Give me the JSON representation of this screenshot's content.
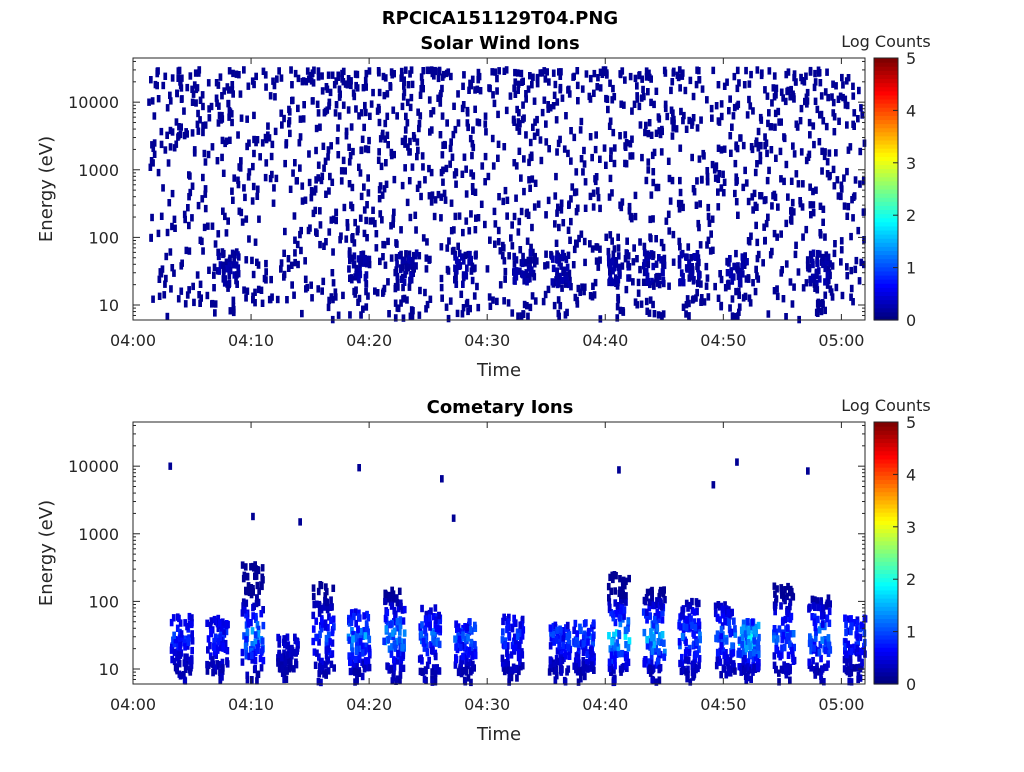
{
  "figure": {
    "title": "RPCICA151129T04.PNG"
  },
  "chart_data": [
    {
      "type": "heatmap",
      "title": "Solar Wind Ions",
      "xlabel": "Time",
      "ylabel": "Energy (eV)",
      "yscale": "log",
      "xlim": [
        "04:00",
        "05:02"
      ],
      "ylim": [
        6,
        45000
      ],
      "x_ticks": [
        "04:00",
        "04:10",
        "04:20",
        "04:30",
        "04:40",
        "04:50",
        "05:00"
      ],
      "y_ticks": [
        "10",
        "100",
        "1000",
        "10000"
      ],
      "colorbar": {
        "label": "Log Counts",
        "range": [
          0,
          5
        ],
        "ticks": [
          "0",
          "1",
          "2",
          "3",
          "4",
          "5"
        ],
        "colormap": "jet"
      },
      "description_values": {
        "scattered_counts_energy_range_eV": [
          10,
          30000
        ],
        "typical_log_counts_scatter": 0.1,
        "dense_bands_energy_eV": [
          20,
          60
        ],
        "dense_band_times": [
          "04:08",
          "04:19",
          "04:23",
          "04:28",
          "04:33",
          "04:36",
          "04:41",
          "04:44",
          "04:47",
          "04:51",
          "04:58"
        ]
      }
    },
    {
      "type": "heatmap",
      "title": "Cometary Ions",
      "xlabel": "Time",
      "ylabel": "Energy (eV)",
      "yscale": "log",
      "xlim": [
        "04:00",
        "05:02"
      ],
      "ylim": [
        6,
        45000
      ],
      "x_ticks": [
        "04:00",
        "04:10",
        "04:20",
        "04:30",
        "04:40",
        "04:50",
        "05:00"
      ],
      "y_ticks": [
        "10",
        "100",
        "1000",
        "10000"
      ],
      "colorbar": {
        "label": "Log Counts",
        "range": [
          0,
          5
        ],
        "ticks": [
          "0",
          "1",
          "2",
          "3",
          "4",
          "5"
        ],
        "colormap": "jet"
      },
      "description_values": {
        "bursts": [
          {
            "time": "04:04",
            "emax_eV": 60,
            "peak_log_counts": 0.9
          },
          {
            "time": "04:07",
            "emax_eV": 60,
            "peak_log_counts": 0.9
          },
          {
            "time": "04:10",
            "emax_eV": 350,
            "peak_log_counts": 1.6
          },
          {
            "time": "04:13",
            "emax_eV": 30,
            "peak_log_counts": 0.5
          },
          {
            "time": "04:16",
            "emax_eV": 180,
            "peak_log_counts": 1.0
          },
          {
            "time": "04:19",
            "emax_eV": 70,
            "peak_log_counts": 1.5
          },
          {
            "time": "04:22",
            "emax_eV": 150,
            "peak_log_counts": 1.6
          },
          {
            "time": "04:25",
            "emax_eV": 80,
            "peak_log_counts": 1.3
          },
          {
            "time": "04:28",
            "emax_eV": 50,
            "peak_log_counts": 1.2
          },
          {
            "time": "04:32",
            "emax_eV": 60,
            "peak_log_counts": 1.0
          },
          {
            "time": "04:36",
            "emax_eV": 45,
            "peak_log_counts": 1.0
          },
          {
            "time": "04:38",
            "emax_eV": 50,
            "peak_log_counts": 1.2
          },
          {
            "time": "04:41",
            "emax_eV": 250,
            "peak_log_counts": 1.9
          },
          {
            "time": "04:44",
            "emax_eV": 150,
            "peak_log_counts": 1.9
          },
          {
            "time": "04:47",
            "emax_eV": 100,
            "peak_log_counts": 1.3
          },
          {
            "time": "04:50",
            "emax_eV": 90,
            "peak_log_counts": 1.3
          },
          {
            "time": "04:52",
            "emax_eV": 50,
            "peak_log_counts": 2.0
          },
          {
            "time": "04:55",
            "emax_eV": 180,
            "peak_log_counts": 1.3
          },
          {
            "time": "04:58",
            "emax_eV": 120,
            "peak_log_counts": 1.4
          },
          {
            "time": "05:01",
            "emax_eV": 60,
            "peak_log_counts": 1.0
          }
        ],
        "isolated_high_energy_points": [
          {
            "time": "04:03",
            "energy_eV": 10000
          },
          {
            "time": "04:19",
            "energy_eV": 9500
          },
          {
            "time": "04:26",
            "energy_eV": 6500
          },
          {
            "time": "04:27",
            "energy_eV": 1700
          },
          {
            "time": "04:41",
            "energy_eV": 8800
          },
          {
            "time": "04:49",
            "energy_eV": 5300
          },
          {
            "time": "04:51",
            "energy_eV": 11500
          },
          {
            "time": "04:57",
            "energy_eV": 8500
          },
          {
            "time": "04:10",
            "energy_eV": 1800
          },
          {
            "time": "04:14",
            "energy_eV": 1500
          }
        ]
      }
    }
  ]
}
